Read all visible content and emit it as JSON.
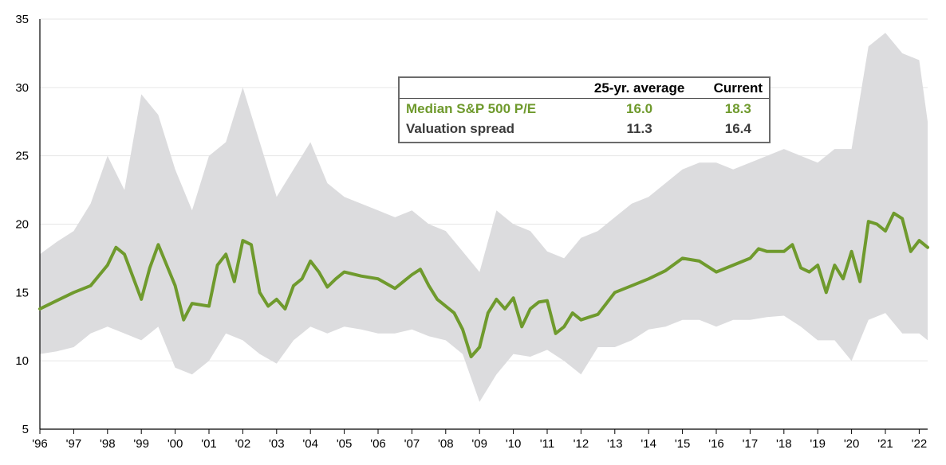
{
  "chart_data": {
    "type": "line",
    "title": "",
    "xlabel": "",
    "ylabel": "",
    "ylim": [
      5,
      35
    ],
    "y_ticks": [
      "5",
      "10",
      "15",
      "20",
      "25",
      "30",
      "35"
    ],
    "x_ticks": [
      "'96",
      "'97",
      "'98",
      "'99",
      "'00",
      "'01",
      "'02",
      "'03",
      "'04",
      "'05",
      "'06",
      "'07",
      "'08",
      "'09",
      "'10",
      "'11",
      "'12",
      "'13",
      "'14",
      "'15",
      "'16",
      "'17",
      "'18",
      "'19",
      "'20",
      "'21",
      "'22"
    ],
    "grid": true,
    "colors": {
      "line": "#6f9a2d",
      "band": "#dcdcde",
      "grid": "#e6e6e6",
      "axis": "#000000"
    },
    "series": [
      {
        "name": "Median S&P 500 P/E",
        "x": [
          1996.0,
          1996.5,
          1997.0,
          1997.5,
          1998.0,
          1998.25,
          1998.5,
          1999.0,
          1999.25,
          1999.5,
          2000.0,
          2000.25,
          2000.5,
          2001.0,
          2001.25,
          2001.5,
          2001.75,
          2002.0,
          2002.25,
          2002.5,
          2002.75,
          2003.0,
          2003.25,
          2003.5,
          2003.75,
          2004.0,
          2004.25,
          2004.5,
          2004.75,
          2005.0,
          2005.5,
          2006.0,
          2006.5,
          2007.0,
          2007.25,
          2007.5,
          2007.75,
          2008.0,
          2008.25,
          2008.5,
          2008.75,
          2009.0,
          2009.25,
          2009.5,
          2009.75,
          2010.0,
          2010.25,
          2010.5,
          2010.75,
          2011.0,
          2011.25,
          2011.5,
          2011.75,
          2012.0,
          2012.25,
          2012.5,
          2012.75,
          2013.0,
          2013.5,
          2014.0,
          2014.5,
          2015.0,
          2015.5,
          2016.0,
          2016.5,
          2017.0,
          2017.25,
          2017.5,
          2018.0,
          2018.25,
          2018.5,
          2018.75,
          2019.0,
          2019.25,
          2019.5,
          2019.75,
          2020.0,
          2020.25,
          2020.5,
          2020.75,
          2021.0,
          2021.25,
          2021.5,
          2021.75,
          2022.0,
          2022.25
        ],
        "values": [
          13.8,
          14.4,
          15.0,
          15.5,
          17.0,
          18.3,
          17.8,
          14.5,
          16.8,
          18.5,
          15.5,
          13.0,
          14.2,
          14.0,
          17.0,
          17.8,
          15.8,
          18.8,
          18.5,
          15.0,
          14.0,
          14.5,
          13.8,
          15.5,
          16.0,
          17.3,
          16.5,
          15.4,
          16.0,
          16.5,
          16.2,
          16.0,
          15.3,
          16.3,
          16.7,
          15.5,
          14.5,
          14.0,
          13.5,
          12.3,
          10.3,
          11.0,
          13.5,
          14.5,
          13.8,
          14.6,
          12.5,
          13.8,
          14.3,
          14.4,
          12.0,
          12.5,
          13.5,
          13.0,
          13.2,
          13.4,
          14.2,
          15.0,
          15.5,
          16.0,
          16.6,
          17.5,
          17.3,
          16.5,
          17.0,
          17.5,
          18.2,
          18.0,
          18.0,
          18.5,
          16.8,
          16.5,
          17.0,
          15.0,
          17.0,
          16.0,
          18.0,
          15.8,
          20.2,
          20.0,
          19.5,
          20.8,
          20.4,
          18.0,
          18.8,
          18.3
        ]
      },
      {
        "name": "Valuation spread",
        "type": "area",
        "x": [
          1996.0,
          1996.5,
          1997.0,
          1997.5,
          1998.0,
          1998.5,
          1999.0,
          1999.5,
          2000.0,
          2000.5,
          2001.0,
          2001.5,
          2002.0,
          2002.5,
          2003.0,
          2003.5,
          2004.0,
          2004.5,
          2005.0,
          2005.5,
          2006.0,
          2006.5,
          2007.0,
          2007.5,
          2008.0,
          2008.5,
          2009.0,
          2009.5,
          2010.0,
          2010.5,
          2011.0,
          2011.5,
          2012.0,
          2012.5,
          2013.0,
          2013.5,
          2014.0,
          2014.5,
          2015.0,
          2015.5,
          2016.0,
          2016.5,
          2017.0,
          2017.5,
          2018.0,
          2018.5,
          2019.0,
          2019.5,
          2020.0,
          2020.5,
          2021.0,
          2021.5,
          2022.0,
          2022.25
        ],
        "upper": [
          17.8,
          18.7,
          19.5,
          21.5,
          25.0,
          22.5,
          29.5,
          28.0,
          24.0,
          21.0,
          25.0,
          26.0,
          30.0,
          26.0,
          22.0,
          24.0,
          26.0,
          23.0,
          22.0,
          21.5,
          21.0,
          20.5,
          21.0,
          20.0,
          19.5,
          18.0,
          16.5,
          21.0,
          20.0,
          19.5,
          18.0,
          17.5,
          19.0,
          19.5,
          20.5,
          21.5,
          22.0,
          23.0,
          24.0,
          24.5,
          24.5,
          24.0,
          24.5,
          25.0,
          25.5,
          25.0,
          24.5,
          25.5,
          25.5,
          33.0,
          34.0,
          32.5,
          32.0,
          27.5
        ],
        "lower": [
          10.5,
          10.7,
          11.0,
          12.0,
          12.5,
          12.0,
          11.5,
          12.5,
          9.5,
          9.0,
          10.0,
          12.0,
          11.5,
          10.5,
          9.8,
          11.5,
          12.5,
          12.0,
          12.5,
          12.3,
          12.0,
          12.0,
          12.3,
          11.8,
          11.5,
          10.5,
          7.0,
          9.0,
          10.5,
          10.3,
          10.8,
          10.0,
          9.0,
          11.0,
          11.0,
          11.5,
          12.3,
          12.5,
          13.0,
          13.0,
          12.5,
          13.0,
          13.0,
          13.2,
          13.3,
          12.5,
          11.5,
          11.5,
          10.0,
          13.0,
          13.5,
          12.0,
          12.0,
          11.5
        ]
      }
    ]
  },
  "legend_table": {
    "columns": [
      "",
      "25-yr. average",
      "Current"
    ],
    "rows": [
      {
        "label": "Median S&P 500 P/E",
        "average": "16.0",
        "current": "18.3"
      },
      {
        "label": "Valuation spread",
        "average": "11.3",
        "current": "16.4"
      }
    ]
  }
}
